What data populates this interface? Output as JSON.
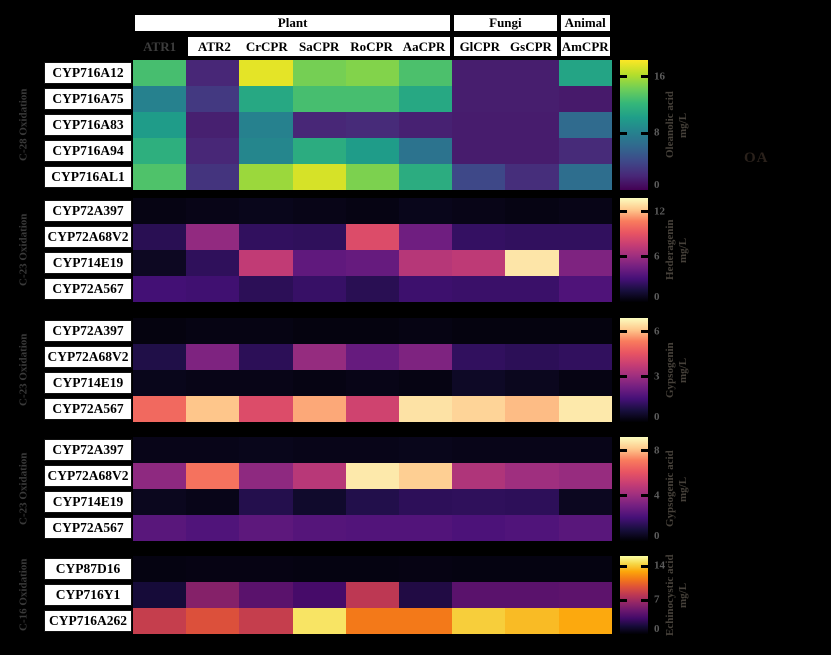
{
  "header": {
    "groups": [
      {
        "label": "Plant",
        "cols": 6
      },
      {
        "label": "Fungi",
        "cols": 2
      },
      {
        "label": "Animal",
        "cols": 1
      }
    ],
    "columns": [
      "ATR1",
      "ATR2",
      "CrCPR",
      "SaCPR",
      "RoCPR",
      "AaCPR",
      "GlCPR",
      "GsCPR",
      "AmCPR"
    ],
    "muted_column": "ATR1"
  },
  "chart_data": [
    {
      "type": "heatmap",
      "panel_label": "C-28 Oxidation",
      "colormap": "viridis",
      "rows": [
        "CYP716A12",
        "CYP716A75",
        "CYP716A83",
        "CYP716A94",
        "CYP716AL1"
      ],
      "columns": [
        "ATR1",
        "ATR2",
        "CrCPR",
        "SaCPR",
        "RoCPR",
        "AaCPR",
        "GlCPR",
        "GsCPR",
        "AmCPR"
      ],
      "values": [
        [
          12.9,
          2.0,
          17.7,
          14.5,
          14.9,
          13.1,
          1.5,
          1.5,
          10.7
        ],
        [
          8.1,
          3.1,
          11.0,
          12.9,
          12.9,
          11.0,
          1.5,
          1.5,
          1.3
        ],
        [
          10.1,
          1.6,
          8.1,
          2.0,
          2.2,
          1.7,
          1.4,
          1.4,
          6.4
        ],
        [
          11.6,
          2.0,
          8.5,
          11.4,
          10.1,
          7.0,
          1.4,
          1.4,
          2.2
        ],
        [
          13.2,
          2.8,
          15.6,
          17.3,
          14.7,
          11.4,
          4.0,
          2.4,
          6.6
        ]
      ],
      "vmax": 18.4,
      "colorbar": {
        "ticks": [
          "16",
          "8",
          "0"
        ],
        "label": "Oleanolic acid",
        "unit": "mg/L"
      },
      "annotation": "OA"
    },
    {
      "type": "heatmap",
      "panel_label": "C-23 Oxidation",
      "colormap": "magma",
      "rows": [
        "CYP72A397",
        "CYP72A68V2",
        "CYP714E19",
        "CYP72A567"
      ],
      "columns": [
        "ATR1",
        "ATR2",
        "CrCPR",
        "SaCPR",
        "RoCPR",
        "AaCPR",
        "GlCPR",
        "GsCPR",
        "AmCPR"
      ],
      "values": [
        [
          0.4,
          0.5,
          0.6,
          0.5,
          0.4,
          0.6,
          0.5,
          0.4,
          0.5
        ],
        [
          2.1,
          5.7,
          2.4,
          2.3,
          8.6,
          4.5,
          2.5,
          2.4,
          2.4
        ],
        [
          0.8,
          2.3,
          7.4,
          4.0,
          4.2,
          7.0,
          7.3,
          13.1,
          5.0
        ],
        [
          3.0,
          2.9,
          2.2,
          2.6,
          2.1,
          2.8,
          2.7,
          2.7,
          3.4
        ]
      ],
      "vmax": 13.8,
      "colorbar": {
        "ticks": [
          "12",
          "6",
          "0"
        ],
        "label": "Hederagenin",
        "unit": "mg/L"
      },
      "annotation": ""
    },
    {
      "type": "heatmap",
      "panel_label": "C-23 Oxidation",
      "colormap": "magma",
      "rows": [
        "CYP72A397",
        "CYP72A68V2",
        "CYP714E19",
        "CYP72A567"
      ],
      "columns": [
        "ATR1",
        "ATR2",
        "CrCPR",
        "SaCPR",
        "RoCPR",
        "AaCPR",
        "GlCPR",
        "GsCPR",
        "AmCPR"
      ],
      "values": [
        [
          0.15,
          0.2,
          0.2,
          0.15,
          0.15,
          0.2,
          0.15,
          0.15,
          0.15
        ],
        [
          0.9,
          2.5,
          1.1,
          2.9,
          2.1,
          2.5,
          1.2,
          1.1,
          1.2
        ],
        [
          0.3,
          0.25,
          0.25,
          0.2,
          0.25,
          0.2,
          0.45,
          0.35,
          0.2
        ],
        [
          5.0,
          6.1,
          4.3,
          5.8,
          4.0,
          6.5,
          6.3,
          6.0,
          6.6
        ]
      ],
      "vmax": 6.9,
      "colorbar": {
        "ticks": [
          "6",
          "3",
          "0"
        ],
        "label": "Gypsogenin",
        "unit": "mg/L"
      },
      "annotation": ""
    },
    {
      "type": "heatmap",
      "panel_label": "C-23 Oxidation",
      "colormap": "magma",
      "rows": [
        "CYP72A397",
        "CYP72A68V2",
        "CYP714E19",
        "CYP72A567"
      ],
      "columns": [
        "ATR1",
        "ATR2",
        "CrCPR",
        "SaCPR",
        "RoCPR",
        "AaCPR",
        "GlCPR",
        "GsCPR",
        "AmCPR"
      ],
      "values": [
        [
          0.35,
          0.35,
          0.4,
          0.35,
          0.35,
          0.4,
          0.35,
          0.35,
          0.35
        ],
        [
          3.7,
          6.9,
          3.7,
          4.7,
          8.8,
          8.3,
          4.5,
          4.1,
          3.9
        ],
        [
          0.45,
          0.35,
          1.3,
          0.7,
          1.25,
          1.5,
          1.55,
          1.5,
          0.5
        ],
        [
          2.5,
          2.3,
          2.6,
          2.4,
          2.35,
          2.35,
          2.2,
          2.3,
          2.5
        ]
      ],
      "vmax": 9.2,
      "colorbar": {
        "ticks": [
          "8",
          "4",
          "0"
        ],
        "label": "Gypsogenic acid",
        "unit": "mg/L"
      },
      "annotation": ""
    },
    {
      "type": "heatmap",
      "panel_label": "C-16 Oxidation",
      "colormap": "inferno",
      "rows": [
        "CYP87D16",
        "CYP716Y1",
        "CYP716A262"
      ],
      "columns": [
        "ATR1",
        "ATR2",
        "CrCPR",
        "SaCPR",
        "RoCPR",
        "AaCPR",
        "GlCPR",
        "GsCPR",
        "AmCPR"
      ],
      "values": [
        [
          0.4,
          0.45,
          0.45,
          0.4,
          0.4,
          0.45,
          0.4,
          0.4,
          0.4
        ],
        [
          1.6,
          5.9,
          4.2,
          3.4,
          8.1,
          2.0,
          4.2,
          4.2,
          4.3
        ],
        [
          8.5,
          9.6,
          8.5,
          15.0,
          11.3,
          11.3,
          14.2,
          13.6,
          13.0
        ]
      ],
      "vmax": 16.1,
      "colorbar": {
        "ticks": [
          "14",
          "7",
          "0"
        ],
        "label": "Echinocystic acid",
        "unit": "mg/L"
      },
      "annotation": ""
    }
  ],
  "colormaps": {
    "viridis": [
      "#440154",
      "#482878",
      "#3e4989",
      "#31688e",
      "#26828e",
      "#1f9e89",
      "#35b779",
      "#6ece58",
      "#b5de2b",
      "#fde725"
    ],
    "magma": [
      "#000004",
      "#180f3e",
      "#451077",
      "#721f81",
      "#9f2f7f",
      "#c83e73",
      "#e95562",
      "#f97c5d",
      "#fec98d",
      "#fcfdbf"
    ],
    "inferno": [
      "#000004",
      "#160b39",
      "#420a68",
      "#6a176e",
      "#932667",
      "#bc3754",
      "#dd513a",
      "#f37819",
      "#fca50a",
      "#f6d746",
      "#fcffa4"
    ]
  },
  "colors": {
    "background": "#000000",
    "label_box_bg": "#ffffff",
    "label_text": "#000000",
    "muted_header_bg": "#000000",
    "muted_header_text": "#3c3c3c",
    "rotated_label_text": "#3a3a3a",
    "tick_label_text": "#5c5c5c",
    "colorbar_label_text": "#46413a",
    "annotation_text": "#2a211b"
  }
}
